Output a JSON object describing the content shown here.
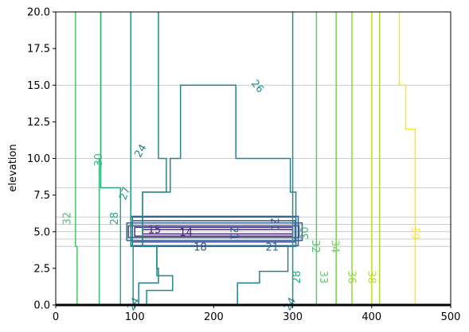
{
  "chart_data": {
    "type": "contour",
    "title": "",
    "xlabel": "",
    "ylabel": "elevation",
    "xlim": [
      0,
      500
    ],
    "ylim": [
      0,
      20
    ],
    "x_ticks": [
      0,
      100,
      200,
      300,
      400,
      500
    ],
    "y_ticks": [
      0.0,
      2.5,
      5.0,
      7.5,
      10.0,
      12.5,
      15.0,
      17.5,
      20.0
    ],
    "x_tick_labels": [
      "0",
      "100",
      "200",
      "300",
      "400",
      "500"
    ],
    "y_tick_labels": [
      "0.0",
      "2.5",
      "5.0",
      "7.5",
      "10.0",
      "12.5",
      "15.0",
      "17.5",
      "20.0"
    ],
    "grid_y": [
      4.0,
      4.5,
      5.0,
      5.5,
      6.0,
      8.0,
      10.0,
      15.0
    ],
    "grid_color": "#cccccc",
    "bottom_boundary": {
      "y": 0,
      "color": "#000000"
    },
    "contours": [
      {
        "level": 14,
        "color": "#482475",
        "rects": [
          [
            110,
            300,
            4.85,
            5.15
          ]
        ]
      },
      {
        "level": 15,
        "color": "#46327e",
        "rects": [
          [
            100,
            300,
            4.7,
            5.3
          ]
        ]
      },
      {
        "level": 18,
        "color": "#3e4989",
        "rects": [
          [
            97,
            303,
            4.3,
            5.75
          ],
          [
            92,
            308,
            4.6,
            5.4
          ]
        ]
      },
      {
        "level": 20,
        "color": "#355f8d",
        "rects": [
          [
            95,
            307,
            4.05,
            6.05
          ],
          [
            90,
            312,
            4.4,
            5.6
          ]
        ]
      },
      {
        "level": 21,
        "color": "#31688e",
        "rects": [
          [
            97,
            304,
            4.0,
            6.0
          ]
        ],
        "stem_x": 292
      },
      {
        "level": 24,
        "color": "#26828e",
        "path": [
          [
            105,
            0
          ],
          [
            105,
            1.5
          ],
          [
            130,
            1.5
          ],
          [
            130,
            2.5
          ],
          [
            128,
            2.5
          ],
          [
            128,
            4.0
          ],
          [
            110,
            4.0
          ],
          [
            110,
            7.7
          ],
          [
            145,
            7.7
          ],
          [
            145,
            10.0
          ],
          [
            158,
            10.0
          ],
          [
            158,
            15.0
          ],
          [
            228,
            15.0
          ],
          [
            228,
            10.0
          ],
          [
            297,
            10.0
          ],
          [
            297,
            7.7
          ],
          [
            304,
            7.7
          ],
          [
            304,
            4.0
          ],
          [
            294,
            4.0
          ],
          [
            294,
            2.3
          ],
          [
            258,
            2.3
          ],
          [
            258,
            1.5
          ],
          [
            230,
            1.5
          ],
          [
            230,
            0
          ]
        ]
      },
      {
        "level": 25,
        "color": "#23898e",
        "path": [
          [
            115,
            0
          ],
          [
            115,
            1.0
          ],
          [
            148,
            1.0
          ],
          [
            148,
            2.0
          ],
          [
            128,
            2.0
          ],
          [
            128,
            4.0
          ],
          [
            110,
            4.0
          ],
          [
            110,
            7.7
          ],
          [
            140,
            7.7
          ],
          [
            140,
            10.0
          ],
          [
            130,
            10.0
          ],
          [
            130,
            20.0
          ]
        ]
      },
      {
        "level": 26,
        "color": "#21918c",
        "path": [
          [
            300,
            0
          ],
          [
            300,
            20
          ]
        ]
      },
      {
        "level": 27,
        "color": "#1f998a",
        "path": [
          [
            98,
            0
          ],
          [
            98,
            4.0
          ],
          [
            95,
            4.0
          ],
          [
            95,
            20
          ]
        ]
      },
      {
        "level": 28,
        "color": "#25ab82",
        "path": [
          [
            82,
            0
          ],
          [
            82,
            8.0
          ],
          [
            57,
            8.0
          ],
          [
            57,
            20
          ]
        ]
      },
      {
        "level": 30,
        "color": "#35b779",
        "path": [
          [
            55,
            0
          ],
          [
            55,
            10
          ],
          [
            57,
            10
          ],
          [
            57,
            20
          ]
        ]
      },
      {
        "level": 32,
        "color": "#4ec36b",
        "path": [
          [
            27,
            0
          ],
          [
            27,
            4.0
          ],
          [
            25,
            4.0
          ],
          [
            25,
            20
          ]
        ]
      },
      {
        "level": 33,
        "color": "#5ec962",
        "path": [
          [
            330,
            0
          ],
          [
            330,
            20
          ]
        ]
      },
      {
        "level": 34,
        "color": "#75d054",
        "path": [
          [
            355,
            0
          ],
          [
            355,
            20
          ]
        ]
      },
      {
        "level": 36,
        "color": "#8fd744",
        "path": [
          [
            375,
            0
          ],
          [
            375,
            20
          ]
        ]
      },
      {
        "level": 37,
        "color": "#a8db34",
        "path": [
          [
            410,
            0
          ],
          [
            410,
            20
          ]
        ]
      },
      {
        "level": 38,
        "color": "#c0df25",
        "path": [
          [
            400,
            0
          ],
          [
            400,
            20
          ]
        ]
      },
      {
        "level": 39,
        "color": "#fde725",
        "path": [
          [
            455,
            0
          ],
          [
            455,
            12
          ],
          [
            443,
            12
          ],
          [
            443,
            15
          ],
          [
            435,
            15
          ],
          [
            435,
            20
          ]
        ]
      }
    ],
    "labels": [
      {
        "text": "32",
        "x": 15,
        "y": 5.9,
        "color": "#4ec36b",
        "rotate": -90
      },
      {
        "text": "30",
        "x": 55,
        "y": 9.9,
        "color": "#35b779",
        "rotate": -90
      },
      {
        "text": "28",
        "x": 75,
        "y": 5.9,
        "color": "#25ab82",
        "rotate": -90
      },
      {
        "text": "27",
        "x": 88,
        "y": 7.6,
        "color": "#1f998a",
        "rotate": -70
      },
      {
        "text": "24",
        "x": 108,
        "y": 10.5,
        "color": "#26828e",
        "rotate": -60
      },
      {
        "text": "26",
        "x": 255,
        "y": 14.9,
        "color": "#21918c",
        "rotate": 50
      },
      {
        "text": "15",
        "x": 125,
        "y": 5.1,
        "color": "#46327e",
        "rotate": 0
      },
      {
        "text": "14",
        "x": 165,
        "y": 4.9,
        "color": "#482475",
        "rotate": 0
      },
      {
        "text": "21",
        "x": 225,
        "y": 4.9,
        "color": "#31688e",
        "rotate": 90
      },
      {
        "text": "18",
        "x": 183,
        "y": 3.9,
        "color": "#3e4989",
        "rotate": 0
      },
      {
        "text": "21",
        "x": 274,
        "y": 3.9,
        "color": "#31688e",
        "rotate": 0
      },
      {
        "text": "20",
        "x": 276,
        "y": 5.5,
        "color": "#355f8d",
        "rotate": 90
      },
      {
        "text": "30",
        "x": 316,
        "y": 4.9,
        "color": "#35b779",
        "rotate": -90
      },
      {
        "text": "32",
        "x": 328,
        "y": 4.0,
        "color": "#4ec36b",
        "rotate": 90
      },
      {
        "text": "34",
        "x": 353,
        "y": 4.0,
        "color": "#75d054",
        "rotate": 90
      },
      {
        "text": "33",
        "x": 338,
        "y": 1.9,
        "color": "#5ec962",
        "rotate": 90
      },
      {
        "text": "36",
        "x": 374,
        "y": 1.9,
        "color": "#8fd744",
        "rotate": 90
      },
      {
        "text": "38",
        "x": 399,
        "y": 1.9,
        "color": "#c0df25",
        "rotate": 90
      },
      {
        "text": "39",
        "x": 454,
        "y": 4.9,
        "color": "#fde725",
        "rotate": 90
      },
      {
        "text": "28",
        "x": 306,
        "y": 1.9,
        "color": "#25ab82",
        "rotate": -90
      },
      {
        "text": "24",
        "x": 99,
        "y": 0.05,
        "color": "#26828e",
        "rotate": -60
      },
      {
        "text": "24",
        "x": 297,
        "y": 0.05,
        "color": "#26828e",
        "rotate": -60
      }
    ]
  }
}
